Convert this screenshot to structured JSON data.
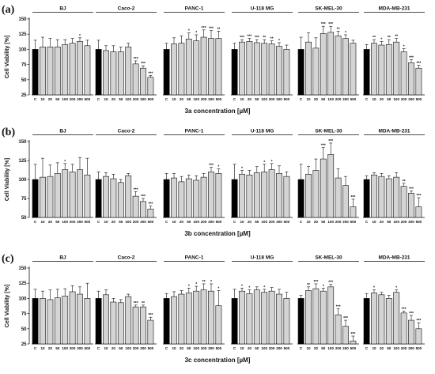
{
  "chart_data": [
    {
      "panel": "(a)",
      "type": "bar",
      "xlabel": "3a concentration [µM]",
      "ylabel": "Cell Viability [%]",
      "ylim": [
        25,
        150
      ],
      "yticks": [
        25,
        50,
        75,
        100,
        125,
        150
      ],
      "categories": [
        "C",
        "10",
        "20",
        "50",
        "100",
        "200",
        "300",
        "500"
      ],
      "series": [
        {
          "name": "BJ",
          "values": [
            100,
            104,
            104,
            104,
            108,
            110,
            113,
            106
          ],
          "errors": [
            15,
            16,
            14,
            12,
            8,
            8,
            6,
            9
          ],
          "stars": [
            "",
            "",
            "",
            "",
            "",
            "",
            "*",
            ""
          ]
        },
        {
          "name": "Caco-2",
          "values": [
            100,
            98,
            96,
            96,
            104,
            76,
            69,
            54
          ],
          "errors": [
            15,
            8,
            10,
            8,
            6,
            5,
            4,
            3
          ],
          "stars": [
            "",
            "",
            "",
            "",
            "",
            "***",
            "***",
            "***"
          ]
        },
        {
          "name": "PANC-1",
          "values": [
            100,
            109,
            110,
            117,
            114,
            120,
            118,
            118
          ],
          "errors": [
            10,
            10,
            12,
            10,
            10,
            12,
            13,
            12
          ],
          "stars": [
            "",
            "",
            "",
            "*",
            "*",
            "***",
            "***",
            "**"
          ]
        },
        {
          "name": "U-118 MG",
          "values": [
            100,
            112,
            113,
            111,
            110,
            109,
            105,
            100
          ],
          "errors": [
            10,
            4,
            5,
            5,
            6,
            5,
            6,
            7
          ],
          "stars": [
            "",
            "***",
            "***",
            "***",
            "**",
            "**",
            "*",
            ""
          ]
        },
        {
          "name": "SK-MEL-30",
          "values": [
            100,
            112,
            102,
            126,
            128,
            122,
            118,
            110
          ],
          "errors": [
            20,
            15,
            17,
            12,
            10,
            8,
            6,
            5
          ],
          "stars": [
            "",
            "",
            "",
            "***",
            "***",
            "**",
            "*",
            ""
          ]
        },
        {
          "name": "MDA-MB-231",
          "values": [
            100,
            110,
            107,
            108,
            112,
            96,
            78,
            69
          ],
          "errors": [
            8,
            6,
            6,
            8,
            6,
            5,
            5,
            5
          ],
          "stars": [
            "",
            "**",
            "*",
            "**",
            "**",
            "*",
            "***",
            "***"
          ]
        }
      ]
    },
    {
      "panel": "(b)",
      "type": "bar",
      "xlabel": "3b concentration [µM]",
      "ylabel": "Cell Viability [%]",
      "ylim": [
        50,
        150
      ],
      "yticks": [
        50,
        75,
        100,
        125,
        150
      ],
      "categories": [
        "C",
        "10",
        "20",
        "50",
        "100",
        "200",
        "300",
        "500"
      ],
      "series": [
        {
          "name": "BJ",
          "values": [
            100,
            103,
            104,
            108,
            113,
            110,
            113,
            106
          ],
          "errors": [
            20,
            25,
            15,
            14,
            8,
            10,
            16,
            22
          ],
          "stars": [
            "",
            "",
            "",
            "",
            "*",
            "",
            "",
            ""
          ]
        },
        {
          "name": "Caco-2",
          "values": [
            100,
            104,
            101,
            96,
            105,
            78,
            71,
            61
          ],
          "errors": [
            10,
            5,
            6,
            4,
            3,
            6,
            4,
            4
          ],
          "stars": [
            "",
            "",
            "",
            "",
            "",
            "***",
            "***",
            "***"
          ]
        },
        {
          "name": "PANC-1",
          "values": [
            100,
            102,
            97,
            101,
            99,
            103,
            110,
            108
          ],
          "errors": [
            8,
            6,
            7,
            5,
            6,
            5,
            6,
            6
          ],
          "stars": [
            "",
            "",
            "",
            "",
            "",
            "",
            "***",
            "*"
          ]
        },
        {
          "name": "U-118 MG",
          "values": [
            100,
            107,
            106,
            109,
            110,
            113,
            108,
            104
          ],
          "errors": [
            20,
            5,
            6,
            8,
            10,
            8,
            10,
            6
          ],
          "stars": [
            "",
            "*",
            "",
            "",
            "*",
            "*",
            "",
            ""
          ]
        },
        {
          "name": "SK-MEL-30",
          "values": [
            100,
            107,
            112,
            127,
            133,
            102,
            92,
            64
          ],
          "errors": [
            20,
            10,
            15,
            15,
            15,
            12,
            12,
            10
          ],
          "stars": [
            "",
            "",
            "",
            "***",
            "***",
            "",
            "",
            "***"
          ]
        },
        {
          "name": "MDA-MB-231",
          "values": [
            100,
            106,
            104,
            101,
            103,
            91,
            82,
            64
          ],
          "errors": [
            5,
            3,
            4,
            4,
            6,
            4,
            3,
            12
          ],
          "stars": [
            "",
            "",
            "",
            "",
            "",
            "**",
            "***",
            "***"
          ]
        }
      ]
    },
    {
      "panel": "(c)",
      "type": "bar",
      "xlabel": "3c concentration [µM]",
      "ylabel": "Cell Viability [%]",
      "ylim": [
        25,
        150
      ],
      "yticks": [
        25,
        50,
        75,
        100,
        125,
        150
      ],
      "categories": [
        "C",
        "10",
        "20",
        "50",
        "100",
        "200",
        "300",
        "500"
      ],
      "series": [
        {
          "name": "BJ",
          "values": [
            100,
            100,
            98,
            101,
            104,
            111,
            107,
            100
          ],
          "errors": [
            15,
            12,
            16,
            14,
            12,
            10,
            12,
            25
          ],
          "stars": [
            "",
            "",
            "",
            "",
            "",
            "",
            "",
            ""
          ]
        },
        {
          "name": "Caco-2",
          "values": [
            100,
            106,
            94,
            93,
            103,
            86,
            86,
            64
          ],
          "errors": [
            12,
            8,
            6,
            5,
            4,
            3,
            3,
            5
          ],
          "stars": [
            "",
            "",
            "",
            "",
            "",
            "***",
            "**",
            "***"
          ]
        },
        {
          "name": "PANC-1",
          "values": [
            100,
            103,
            107,
            109,
            112,
            114,
            112,
            88
          ],
          "errors": [
            8,
            8,
            6,
            8,
            8,
            10,
            12,
            25
          ],
          "stars": [
            "",
            "",
            "",
            "*",
            "*",
            "**",
            "*",
            "*"
          ]
        },
        {
          "name": "U-118 MG",
          "values": [
            100,
            112,
            108,
            114,
            110,
            112,
            107,
            100
          ],
          "errors": [
            15,
            5,
            6,
            5,
            5,
            6,
            8,
            10
          ],
          "stars": [
            "",
            "*",
            "*",
            "",
            "*",
            "",
            "",
            ""
          ]
        },
        {
          "name": "SK-MEL-30",
          "values": [
            100,
            113,
            116,
            112,
            119,
            73,
            54,
            30
          ],
          "errors": [
            5,
            6,
            8,
            5,
            4,
            10,
            10,
            8
          ],
          "stars": [
            "",
            "**",
            "***",
            "*",
            "***",
            "***",
            "***",
            "***"
          ]
        },
        {
          "name": "MDA-MB-231",
          "values": [
            100,
            109,
            106,
            100,
            110,
            76,
            64,
            50
          ],
          "errors": [
            8,
            5,
            4,
            5,
            4,
            3,
            8,
            10
          ],
          "stars": [
            "",
            "*",
            "",
            "",
            "*",
            "***",
            "***",
            "***"
          ]
        }
      ]
    }
  ]
}
